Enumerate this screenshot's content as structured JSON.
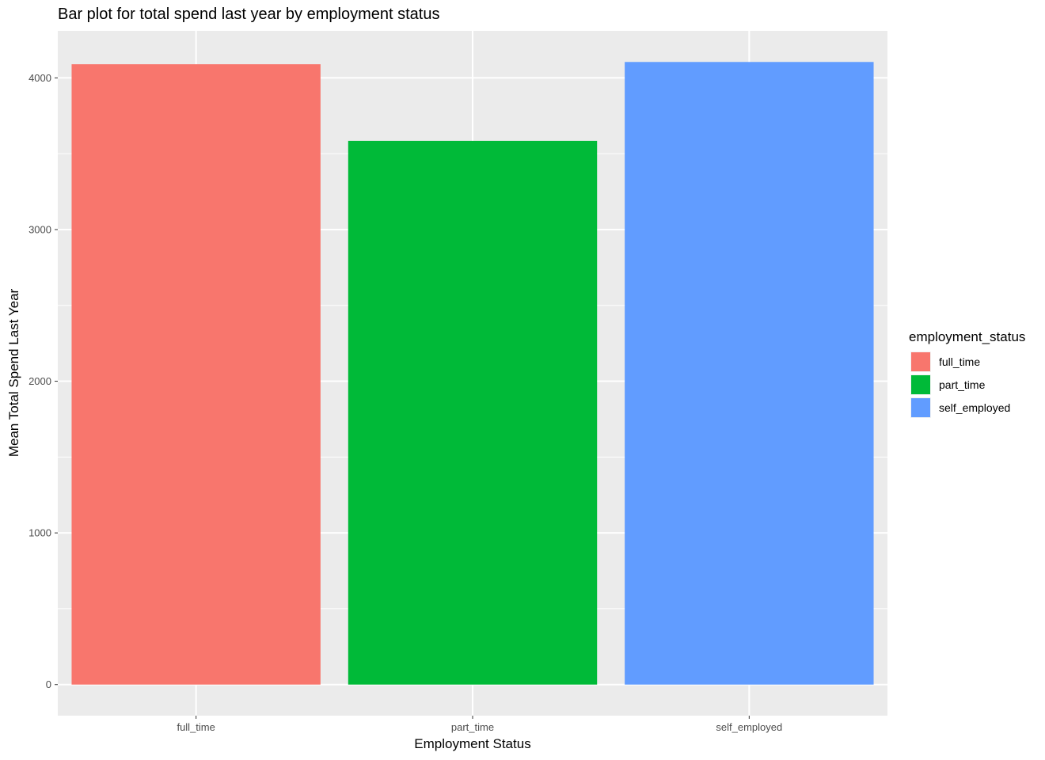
{
  "chart_data": {
    "type": "bar",
    "title": "Bar plot for total spend last year by employment status",
    "xlabel": "Employment Status",
    "ylabel": "Mean Total Spend Last Year",
    "categories": [
      "full_time",
      "part_time",
      "self_employed"
    ],
    "values": [
      4090,
      3585,
      4105
    ],
    "ylim": [
      -205,
      4310
    ],
    "yticks": [
      0,
      1000,
      2000,
      3000,
      4000
    ],
    "ytick_labels": [
      "0",
      "1000",
      "2000",
      "3000",
      "4000"
    ],
    "grid": true,
    "legend": {
      "title": "employment_status",
      "position": "right",
      "entries": [
        "full_time",
        "part_time",
        "self_employed"
      ]
    },
    "colors": {
      "full_time": "#F8766D",
      "part_time": "#00BA38",
      "self_employed": "#619CFF",
      "panel_bg": "#EBEBEB",
      "grid": "#FFFFFF"
    }
  }
}
